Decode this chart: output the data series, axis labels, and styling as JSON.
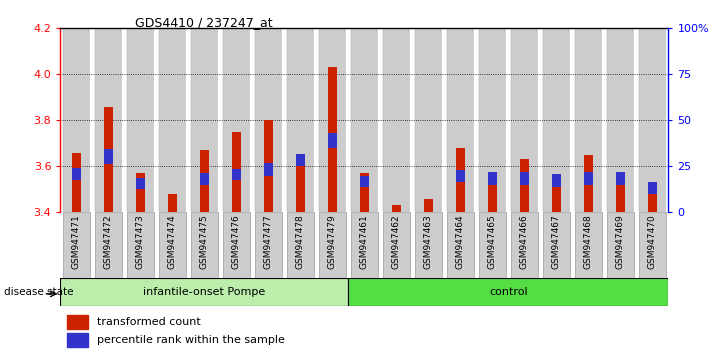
{
  "title": "GDS4410 / 237247_at",
  "samples": [
    "GSM947471",
    "GSM947472",
    "GSM947473",
    "GSM947474",
    "GSM947475",
    "GSM947476",
    "GSM947477",
    "GSM947478",
    "GSM947479",
    "GSM947461",
    "GSM947462",
    "GSM947463",
    "GSM947464",
    "GSM947465",
    "GSM947466",
    "GSM947467",
    "GSM947468",
    "GSM947469",
    "GSM947470"
  ],
  "red_values": [
    3.66,
    3.86,
    3.57,
    3.48,
    3.67,
    3.75,
    3.8,
    3.6,
    4.03,
    3.57,
    3.43,
    3.46,
    3.68,
    3.57,
    3.63,
    3.56,
    3.65,
    3.57,
    3.52
  ],
  "blue_heights": [
    0.055,
    0.065,
    0.05,
    0.0,
    0.05,
    0.05,
    0.055,
    0.055,
    0.065,
    0.05,
    0.005,
    0.005,
    0.055,
    0.055,
    0.055,
    0.055,
    0.055,
    0.055,
    0.05
  ],
  "blue_bottoms": [
    3.54,
    3.61,
    3.5,
    3.48,
    3.52,
    3.54,
    3.56,
    3.6,
    3.68,
    3.51,
    3.43,
    3.46,
    3.53,
    3.52,
    3.52,
    3.51,
    3.52,
    3.52,
    3.48
  ],
  "ylim": [
    3.4,
    4.2
  ],
  "yticks_left": [
    3.4,
    3.6,
    3.8,
    4.0,
    4.2
  ],
  "yticks_right": [
    0,
    25,
    50,
    75,
    100
  ],
  "ytick_labels_right": [
    "0",
    "25",
    "50",
    "75",
    "100%"
  ],
  "group1_label": "infantile-onset Pompe",
  "group2_label": "control",
  "group1_count": 9,
  "group2_count": 10,
  "disease_state_label": "disease state",
  "legend_red": "transformed count",
  "legend_blue": "percentile rank within the sample",
  "bar_color_red": "#cc2200",
  "bar_color_blue": "#3333cc",
  "group1_bg": "#bbeeaa",
  "group2_bg": "#55dd44",
  "bar_bg": "#cccccc",
  "bg_color": "#ffffff"
}
